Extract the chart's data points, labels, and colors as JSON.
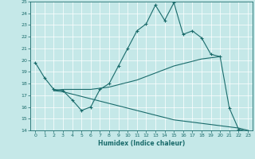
{
  "xlabel": "Humidex (Indice chaleur)",
  "xlim": [
    -0.5,
    23.5
  ],
  "ylim": [
    14,
    25
  ],
  "xticks": [
    0,
    1,
    2,
    3,
    4,
    5,
    6,
    7,
    8,
    9,
    10,
    11,
    12,
    13,
    14,
    15,
    16,
    17,
    18,
    19,
    20,
    21,
    22,
    23
  ],
  "yticks": [
    14,
    15,
    16,
    17,
    18,
    19,
    20,
    21,
    22,
    23,
    24,
    25
  ],
  "bg_color": "#c5e8e8",
  "line_color": "#1a6b6b",
  "line1_x": [
    0,
    1,
    2,
    3,
    4,
    5,
    6,
    7,
    8,
    9,
    10,
    11,
    12,
    13,
    14,
    15,
    16,
    17,
    18,
    19,
    20,
    21,
    22,
    23
  ],
  "line1_y": [
    19.8,
    18.5,
    17.5,
    17.4,
    16.6,
    15.7,
    16.0,
    17.5,
    18.0,
    19.5,
    21.0,
    22.5,
    23.1,
    24.7,
    23.4,
    24.9,
    22.2,
    22.5,
    21.9,
    20.5,
    20.3,
    15.9,
    14.1,
    13.9
  ],
  "line2_x": [
    2,
    3,
    4,
    5,
    6,
    7,
    8,
    9,
    10,
    11,
    12,
    13,
    14,
    15,
    16,
    17,
    18,
    19,
    20
  ],
  "line2_y": [
    17.4,
    17.5,
    17.5,
    17.5,
    17.5,
    17.6,
    17.7,
    17.9,
    18.1,
    18.3,
    18.6,
    18.9,
    19.2,
    19.5,
    19.7,
    19.9,
    20.1,
    20.2,
    20.3
  ],
  "line3_x": [
    2,
    3,
    4,
    5,
    6,
    7,
    8,
    9,
    10,
    11,
    12,
    13,
    14,
    15,
    16,
    17,
    18,
    19,
    20,
    21,
    22,
    23
  ],
  "line3_y": [
    17.4,
    17.3,
    17.1,
    16.9,
    16.7,
    16.5,
    16.3,
    16.1,
    15.9,
    15.7,
    15.5,
    15.3,
    15.1,
    14.9,
    14.8,
    14.7,
    14.6,
    14.5,
    14.4,
    14.3,
    14.2,
    14.0
  ]
}
